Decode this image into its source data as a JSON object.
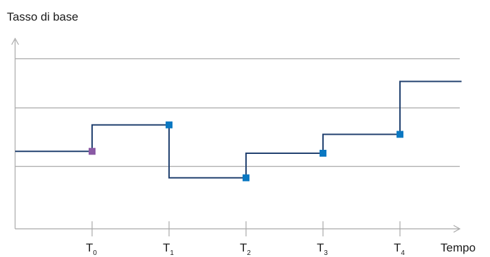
{
  "chart_data": {
    "type": "line",
    "step": true,
    "ylabel": "Tasso di base",
    "xlabel": "Tempo",
    "ticks": [
      {
        "main": "T",
        "sub": "0",
        "x": 0
      },
      {
        "main": "T",
        "sub": "1",
        "x": 1
      },
      {
        "main": "T",
        "sub": "2",
        "x": 2
      },
      {
        "main": "T",
        "sub": "3",
        "x": 3
      },
      {
        "main": "T",
        "sub": "4",
        "x": 4
      }
    ],
    "xlim": [
      -1.0,
      4.8
    ],
    "ylim": [
      0,
      1
    ],
    "gridlines": [
      0.33,
      0.64,
      0.9
    ],
    "series": [
      {
        "color": "#1f3f6e",
        "steps": [
          {
            "x": -1.0,
            "y": 0.41
          },
          {
            "x": 0,
            "y": 0.55
          },
          {
            "x": 1,
            "y": 0.27
          },
          {
            "x": 2,
            "y": 0.4
          },
          {
            "x": 3,
            "y": 0.5
          },
          {
            "x": 4,
            "y": 0.78
          },
          {
            "x": 4.8,
            "y": 0.78
          }
        ]
      }
    ],
    "markers": [
      {
        "x": 0,
        "y": 0.41,
        "color": "#8a5aa5"
      },
      {
        "x": 1,
        "y": 0.55,
        "color": "#0a78c2"
      },
      {
        "x": 2,
        "y": 0.27,
        "color": "#0a78c2"
      },
      {
        "x": 3,
        "y": 0.4,
        "color": "#0a78c2"
      },
      {
        "x": 4,
        "y": 0.5,
        "color": "#0a78c2"
      }
    ]
  }
}
